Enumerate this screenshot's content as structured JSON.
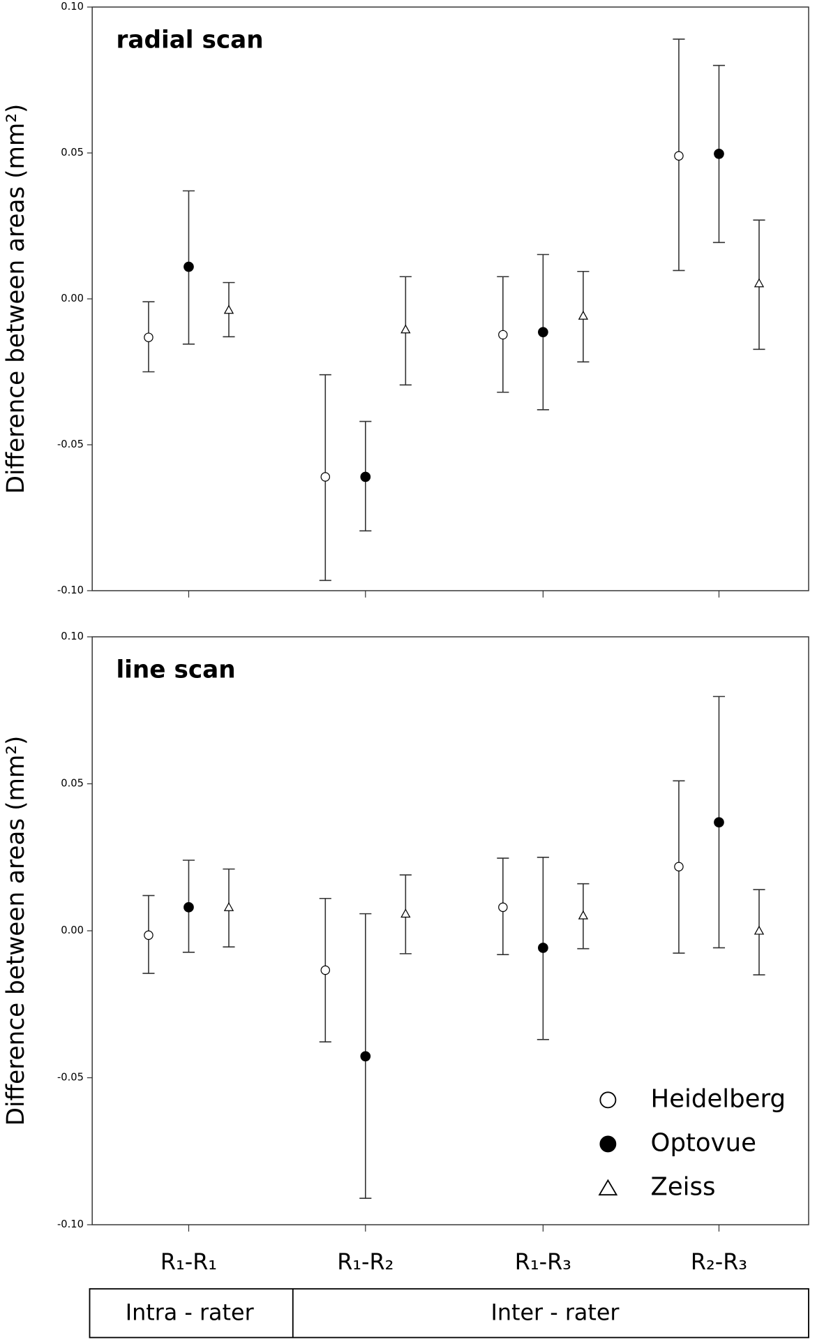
{
  "chart_data": [
    {
      "type": "errorbar",
      "title": "radial scan",
      "ylabel": "Difference between areas (mm²)",
      "categories": [
        "R₁-R₁",
        "R₁-R₂",
        "R₁-R₃",
        "R₂-R₃"
      ],
      "ylim": [
        -0.1,
        0.1
      ],
      "yticks": [
        {
          "value": -0.1,
          "label": "-0.10"
        },
        {
          "value": -0.05,
          "label": "-0.05"
        },
        {
          "value": 0,
          "label": "0.00"
        },
        {
          "value": 0.05,
          "label": "0.05"
        },
        {
          "value": 0.1,
          "label": "0.10"
        }
      ],
      "series": [
        {
          "name": "Heidelberg",
          "marker": "circle-open",
          "color": "#000000",
          "values": [
            -0.0132,
            -0.061,
            -0.0123,
            0.049
          ],
          "low": [
            -0.025,
            -0.0965,
            -0.032,
            0.0097
          ],
          "high": [
            -0.001,
            -0.026,
            0.0076,
            0.089
          ]
        },
        {
          "name": "Optovue",
          "marker": "circle-filled",
          "color": "#000000",
          "values": [
            0.011,
            -0.061,
            -0.0114,
            0.0497
          ],
          "low": [
            -0.0155,
            -0.0795,
            -0.038,
            0.0193
          ],
          "high": [
            0.037,
            -0.042,
            0.0152,
            0.08
          ]
        },
        {
          "name": "Zeiss",
          "marker": "triangle-open",
          "color": "#000000",
          "values": [
            -0.0038,
            -0.0105,
            -0.0058,
            0.0053
          ],
          "low": [
            -0.013,
            -0.0295,
            -0.0216,
            -0.0173
          ],
          "high": [
            0.0056,
            0.0076,
            0.0094,
            0.027
          ]
        }
      ]
    },
    {
      "type": "errorbar",
      "title": "line scan",
      "ylabel": "Difference between areas (mm²)",
      "categories": [
        "R₁-R₁",
        "R₁-R₂",
        "R₁-R₃",
        "R₂-R₃"
      ],
      "ylim": [
        -0.1,
        0.1
      ],
      "yticks": [
        {
          "value": -0.1,
          "label": "-0.10"
        },
        {
          "value": -0.05,
          "label": "-0.05"
        },
        {
          "value": 0,
          "label": "0.00"
        },
        {
          "value": 0.05,
          "label": "0.05"
        },
        {
          "value": 0.1,
          "label": "0.10"
        }
      ],
      "legend": "lower right",
      "series": [
        {
          "name": "Heidelberg",
          "marker": "circle-open",
          "color": "#000000",
          "values": [
            -0.0015,
            -0.0134,
            0.008,
            0.0218
          ],
          "low": [
            -0.0145,
            -0.0378,
            -0.0081,
            -0.0076
          ],
          "high": [
            0.012,
            0.011,
            0.0247,
            0.051
          ]
        },
        {
          "name": "Optovue",
          "marker": "circle-filled",
          "color": "#000000",
          "values": [
            0.008,
            -0.0427,
            -0.0058,
            0.0369
          ],
          "low": [
            -0.0073,
            -0.091,
            -0.037,
            -0.0058
          ],
          "high": [
            0.024,
            0.0058,
            0.025,
            0.0797
          ]
        },
        {
          "name": "Zeiss",
          "marker": "triangle-open",
          "color": "#000000",
          "values": [
            0.008,
            0.0058,
            0.0052,
            0
          ],
          "low": [
            -0.0055,
            -0.0078,
            -0.0061,
            -0.015
          ],
          "high": [
            0.021,
            0.019,
            0.016,
            0.014
          ]
        }
      ]
    }
  ],
  "group_labels": [
    "Intra - rater",
    "Inter - rater"
  ]
}
